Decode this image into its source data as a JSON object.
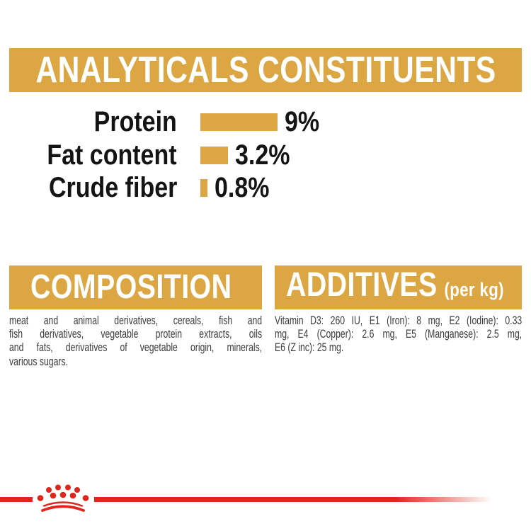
{
  "colors": {
    "gold": "#DCA643",
    "red": "#E2251B",
    "heading_text": "#FFFFFF",
    "label_text": "#141414",
    "body_text": "#3B3B3B"
  },
  "chart_data": {
    "type": "bar",
    "orientation": "horizontal",
    "title": "ANALYTICALS CONSTITUENTS",
    "categories": [
      "Protein",
      "Fat content",
      "Crude fiber"
    ],
    "values": [
      9,
      3.2,
      0.8
    ],
    "value_labels": [
      "9%",
      "3.2%",
      "0.8%"
    ],
    "unit": "%",
    "bar_color": "#DCA643",
    "xlim": [
      0,
      9
    ],
    "grid": false,
    "legend": false
  },
  "composition": {
    "title": "COMPOSITION",
    "lines": [
      "meat and animal derivatives, cereals, fish and",
      "fish derivatives, vegetable protein extracts, oils",
      "and fats, derivatives of vegetable origin, minerals,",
      "various sugars."
    ]
  },
  "additives": {
    "title": "ADDITIVES",
    "title_suffix": "(per kg)",
    "lines": [
      "Vitamin D3: 260 IU, E1 (Iron): 8 mg, E2 (Iodine): 0.33",
      "mg, E4 (Copper): 2.6 mg, E5 (Manganese): 2.5 mg,",
      "E6 (Z inc): 25 mg."
    ]
  },
  "footer": {
    "logo": "royal-canin-crown"
  }
}
